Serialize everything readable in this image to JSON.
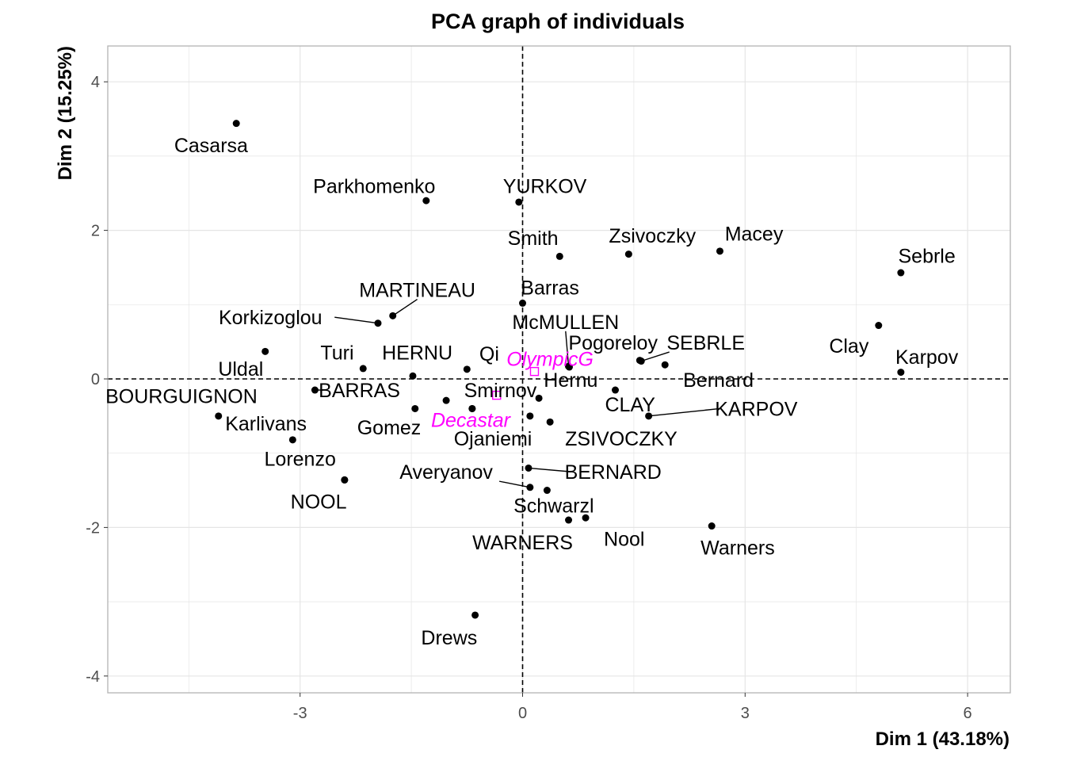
{
  "chart_data": {
    "type": "scatter",
    "title": "PCA graph of individuals",
    "xlabel": "Dim 1 (43.18%)",
    "ylabel": "Dim 2 (15.25%)",
    "xlim": [
      -5.5,
      6.6
    ],
    "ylim": [
      -4.2,
      4.5
    ],
    "xticks": [
      -3,
      0,
      3,
      6
    ],
    "yticks": [
      -4,
      -2,
      0,
      2,
      4
    ],
    "grid": true,
    "reference_lines": {
      "x": 0,
      "y": 0,
      "style": "dashed"
    },
    "colors": {
      "active": "#000000",
      "supplementary": "#ff00ff",
      "grid": "#e5e5e5",
      "panel_border": "#b3b3b3",
      "tick_text": "#4d4d4d"
    },
    "points": [
      {
        "name": "Casarsa",
        "x": -3.86,
        "y": 3.44,
        "lx": -4.2,
        "ly": 3.15
      },
      {
        "name": "Parkhomenko",
        "x": -1.3,
        "y": 2.4,
        "lx": -2.0,
        "ly": 2.6
      },
      {
        "name": "YURKOV",
        "x": -0.05,
        "y": 2.38,
        "lx": 0.3,
        "ly": 2.6
      },
      {
        "name": "Smith",
        "x": 0.5,
        "y": 1.65,
        "lx": 0.14,
        "ly": 1.9
      },
      {
        "name": "Zsivoczky",
        "x": 1.43,
        "y": 1.68,
        "lx": 1.75,
        "ly": 1.93
      },
      {
        "name": "Macey",
        "x": 2.66,
        "y": 1.72,
        "lx": 3.12,
        "ly": 1.96
      },
      {
        "name": "Sebrle",
        "x": 5.1,
        "y": 1.43,
        "lx": 5.45,
        "ly": 1.66
      },
      {
        "name": "MARTINEAU",
        "x": -1.75,
        "y": 0.85,
        "lx": -1.42,
        "ly": 1.2,
        "leader": true
      },
      {
        "name": "Barras",
        "x": 0.0,
        "y": 1.02,
        "lx": 0.37,
        "ly": 1.23
      },
      {
        "name": "Korkizoglou",
        "x": -1.95,
        "y": 0.75,
        "lx": -3.4,
        "ly": 0.83,
        "leader": true
      },
      {
        "name": "McMULLEN",
        "x": 0.62,
        "y": 0.17,
        "lx": 0.58,
        "ly": 0.77,
        "leader": true
      },
      {
        "name": "Pogoreloy",
        "x": 1.58,
        "y": 0.25,
        "lx": 1.22,
        "ly": 0.49
      },
      {
        "name": "SEBRLE",
        "x": 1.6,
        "y": 0.24,
        "lx": 2.47,
        "ly": 0.49,
        "leader": true
      },
      {
        "name": "Clay",
        "x": 4.8,
        "y": 0.72,
        "lx": 4.4,
        "ly": 0.45
      },
      {
        "name": "Karpov",
        "x": 5.1,
        "y": 0.09,
        "lx": 5.45,
        "ly": 0.3
      },
      {
        "name": "Uldal",
        "x": -3.47,
        "y": 0.37,
        "lx": -3.8,
        "ly": 0.14
      },
      {
        "name": "Turi",
        "x": -2.15,
        "y": 0.14,
        "lx": -2.5,
        "ly": 0.36
      },
      {
        "name": "HERNU",
        "x": -1.48,
        "y": 0.04,
        "lx": -1.42,
        "ly": 0.36
      },
      {
        "name": "Qi",
        "x": -0.75,
        "y": 0.13,
        "lx": -0.45,
        "ly": 0.34
      },
      {
        "name": "Hernu",
        "x": 0.63,
        "y": 0.16,
        "lx": 0.65,
        "ly": -0.01
      },
      {
        "name": "Bernard",
        "x": 1.92,
        "y": 0.19,
        "lx": 2.64,
        "ly": -0.01
      },
      {
        "name": "BOURGUIGNON",
        "x": -4.1,
        "y": -0.5,
        "lx": -4.6,
        "ly": -0.23
      },
      {
        "name": "BARRAS",
        "x": -2.8,
        "y": -0.15,
        "lx": -2.2,
        "ly": -0.15,
        "leader": true
      },
      {
        "name": "Smirnov",
        "x": -1.03,
        "y": -0.29,
        "lx": -0.3,
        "ly": -0.15
      },
      {
        "name": "CLAY",
        "x": 1.25,
        "y": -0.15,
        "lx": 1.45,
        "ly": -0.34
      },
      {
        "name": "KARPOV",
        "x": 1.7,
        "y": -0.5,
        "lx": 3.15,
        "ly": -0.4,
        "leader": true
      },
      {
        "name": "Karlivans",
        "x": -3.1,
        "y": -0.82,
        "lx": -3.46,
        "ly": -0.6
      },
      {
        "name": "Gomez",
        "x": -1.45,
        "y": -0.4,
        "lx": -1.8,
        "ly": -0.65
      },
      {
        "name": "Ojaniemi",
        "x": -0.68,
        "y": -0.4,
        "lx": -0.4,
        "ly": -0.8
      },
      {
        "name": "ZSIVOCZKY",
        "x": 0.37,
        "y": -0.58,
        "lx": 1.33,
        "ly": -0.8
      },
      {
        "name": "Lorenzo",
        "x": -2.4,
        "y": -1.36,
        "lx": -3.0,
        "ly": -1.07
      },
      {
        "name": "Averyanov",
        "x": 0.1,
        "y": -1.46,
        "lx": -1.03,
        "ly": -1.25,
        "leader": true
      },
      {
        "name": "BERNARD",
        "x": 0.08,
        "y": -1.2,
        "lx": 1.22,
        "ly": -1.25,
        "leader": true
      },
      {
        "name": "NOOL",
        "x": -2.4,
        "y": -1.36,
        "lx": -2.75,
        "ly": -1.65
      },
      {
        "name": "Schwarzl",
        "x": 0.33,
        "y": -1.5,
        "lx": 0.42,
        "ly": -1.7
      },
      {
        "name": "WARNERS",
        "x": 0.62,
        "y": -1.9,
        "lx": 0.0,
        "ly": -2.2
      },
      {
        "name": "Nool",
        "x": 0.85,
        "y": -1.87,
        "lx": 1.37,
        "ly": -2.15
      },
      {
        "name": "Warners",
        "x": 2.55,
        "y": -1.98,
        "lx": 2.9,
        "ly": -2.27
      },
      {
        "name": "Drews",
        "x": -0.64,
        "y": -3.18,
        "lx": -0.99,
        "ly": -3.48
      }
    ],
    "extra_points": [
      {
        "x": 0.22,
        "y": -0.26
      },
      {
        "x": 0.1,
        "y": -0.5
      },
      {
        "x": -0.68,
        "y": -0.4
      }
    ],
    "supplementary": [
      {
        "name": "OlympicG",
        "x": 0.16,
        "y": 0.1,
        "lx": 0.37,
        "ly": 0.27
      },
      {
        "name": "Decastar",
        "x": -0.35,
        "y": -0.22,
        "lx": -0.7,
        "ly": -0.55
      }
    ]
  }
}
